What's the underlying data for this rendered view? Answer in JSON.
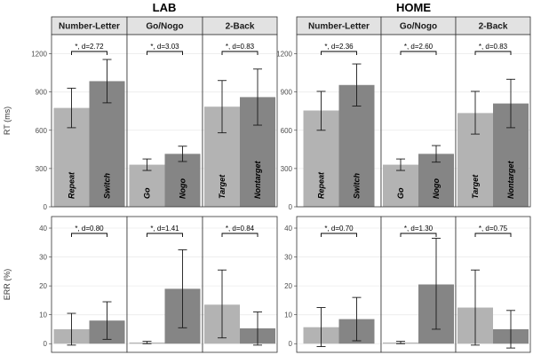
{
  "chart_data": {
    "type": "bar",
    "groups": [
      "LAB",
      "HOME"
    ],
    "facets": [
      "Number-Letter",
      "Go/Nogo",
      "2-Back"
    ],
    "conditions": [
      [
        "Repeat",
        "Switch"
      ],
      [
        "Go",
        "Nogo"
      ],
      [
        "Target",
        "Nontarget"
      ]
    ],
    "rt": {
      "ylabel": "RT (ms)",
      "ylim": [
        0,
        1350
      ],
      "ticks": [
        0,
        300,
        600,
        900,
        1200
      ],
      "LAB": {
        "means": [
          [
            775,
            985
          ],
          [
            330,
            415
          ],
          [
            785,
            860
          ]
        ],
        "lower": [
          [
            620,
            815
          ],
          [
            285,
            355
          ],
          [
            580,
            640
          ]
        ],
        "upper": [
          [
            930,
            1155
          ],
          [
            375,
            475
          ],
          [
            990,
            1080
          ]
        ],
        "annotations": [
          "*, d=2.72",
          "*, d=3.03",
          "*, d=0.83"
        ]
      },
      "HOME": {
        "means": [
          [
            755,
            955
          ],
          [
            330,
            415
          ],
          [
            735,
            810
          ]
        ],
        "lower": [
          [
            600,
            790
          ],
          [
            285,
            350
          ],
          [
            570,
            620
          ]
        ],
        "upper": [
          [
            905,
            1120
          ],
          [
            375,
            480
          ],
          [
            905,
            1000
          ]
        ],
        "annotations": [
          "*, d=2.36",
          "*, d=2.60",
          "*, d=0.83"
        ]
      }
    },
    "err": {
      "ylabel": "ERR (%)",
      "ylim": [
        -3,
        44
      ],
      "ticks": [
        0,
        10,
        20,
        30,
        40
      ],
      "LAB": {
        "means": [
          [
            5,
            8
          ],
          [
            0.4,
            19
          ],
          [
            13.5,
            5.3
          ]
        ],
        "lower": [
          [
            -0.5,
            1.5
          ],
          [
            0,
            5.5
          ],
          [
            2,
            -0.5
          ]
        ],
        "upper": [
          [
            10.5,
            14.5
          ],
          [
            0.8,
            32.5
          ],
          [
            25.5,
            11
          ]
        ],
        "annotations": [
          "*, d=0.80",
          "*, d=1.41",
          "*, d=0.84"
        ]
      },
      "HOME": {
        "means": [
          [
            5.7,
            8.5
          ],
          [
            0.4,
            20.5
          ],
          [
            12.5,
            5
          ]
        ],
        "lower": [
          [
            -1,
            1
          ],
          [
            0,
            5
          ],
          [
            -0.5,
            -1.5
          ]
        ],
        "upper": [
          [
            12.5,
            16
          ],
          [
            0.8,
            36.5
          ],
          [
            25.5,
            11.5
          ]
        ],
        "annotations": [
          "*, d=0.70",
          "*, d=1.30",
          "*, d=0.75"
        ]
      }
    },
    "colors": {
      "first": "#b3b3b3",
      "second": "#858585",
      "strip": "#e2e2e2",
      "grid": "#ebebeb",
      "frame": "#333333"
    }
  }
}
